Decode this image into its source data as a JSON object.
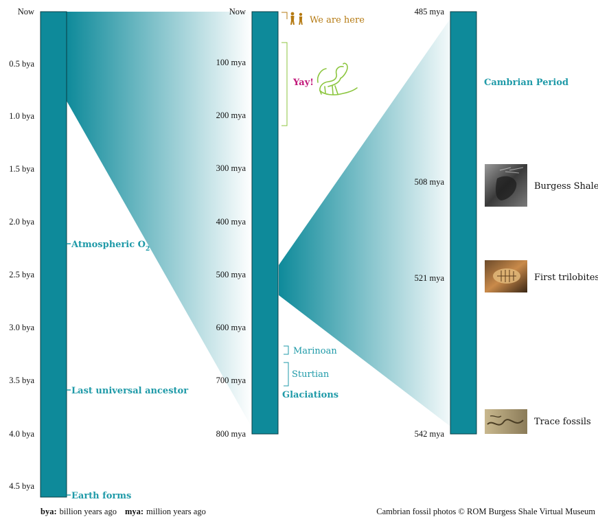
{
  "colors": {
    "bar": "#0e8a9a",
    "bar_stroke": "#0a3d44",
    "teal_text": "#1f9aa8",
    "gold_text": "#b57a12",
    "magenta_text": "#c2187a",
    "green_bracket": "#8cc63f"
  },
  "timeline_full": {
    "ticks": [
      "Now",
      "0.5 bya",
      "1.0 bya",
      "1.5 bya",
      "2.0 bya",
      "2.5 bya",
      "3.0 bya",
      "3.5 bya",
      "4.0 bya",
      "4.5 bya"
    ],
    "events": [
      {
        "label": "Atmospheric O",
        "sub": "2",
        "value_bya": 2.4
      },
      {
        "label": "Last universal ancestor",
        "value_bya": 3.6
      },
      {
        "label": "Earth forms",
        "value_bya": 4.6
      }
    ]
  },
  "timeline_recent": {
    "ticks": [
      "Now",
      "100 mya",
      "200 mya",
      "300 mya",
      "400 mya",
      "500 mya",
      "600 mya",
      "700 mya",
      "800 mya"
    ],
    "we_are_here": "We are here",
    "yay": "Yay!",
    "glaciations": {
      "title": "Glaciations",
      "items": [
        "Marinoan",
        "Sturtian"
      ]
    }
  },
  "timeline_cambrian": {
    "ticks": [
      "485 mya",
      "508 mya",
      "521 mya",
      "542 mya"
    ],
    "period_label": "Cambrian Period",
    "fossils": [
      "Burgess Shale",
      "First trilobites",
      "Trace fossils"
    ]
  },
  "footer": {
    "bya_key": "bya:",
    "bya_text": "billion years ago",
    "mya_key": "mya:",
    "mya_text": "million years ago",
    "credit": "Cambrian fossil photos © ROM Burgess Shale Virtual Museum"
  },
  "icons": [
    "people-icon",
    "dinosaur-icon",
    "fossil-photo-icon"
  ]
}
